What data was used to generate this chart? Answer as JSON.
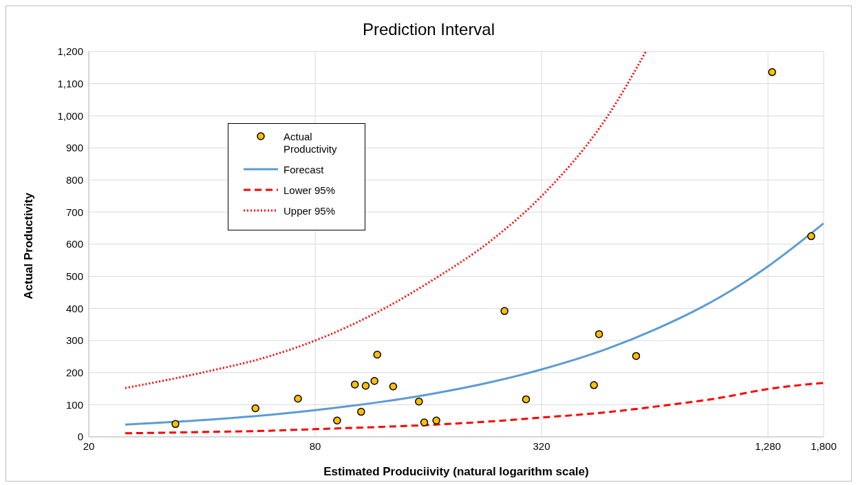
{
  "chart_data": {
    "type": "scatter",
    "title": "Prediction Interval",
    "xlabel": "Estimated Produciivity (natural logarithm scale)",
    "ylabel": "Actual Productivity",
    "log": "x",
    "xlim": [
      20,
      1800
    ],
    "xticks": [
      20,
      80,
      320,
      {
        "value": 1280,
        "label": "1,280"
      },
      {
        "value": 1800,
        "label": "1,800"
      }
    ],
    "ylim": [
      0,
      1200
    ],
    "yticks": [
      0,
      100,
      200,
      300,
      400,
      500,
      600,
      700,
      800,
      900,
      {
        "value": 1000,
        "label": "1,000"
      },
      {
        "value": 1100,
        "label": "1,100"
      },
      {
        "value": 1200,
        "label": "1,200"
      }
    ],
    "grid": true,
    "legend": "top left",
    "series": [
      {
        "name": "Actual Productivity",
        "marker": "circle",
        "color": "#ffc000",
        "x": [
          34,
          55.5,
          72,
          91.5,
          102,
          106,
          109,
          115,
          117,
          129,
          151,
          156,
          168,
          255,
          291,
          441,
          455,
          571,
          1313,
          1668
        ],
        "values": [
          40,
          89,
          119,
          51,
          163,
          78,
          159,
          174,
          256,
          157,
          110,
          45,
          51,
          392,
          117,
          161,
          320,
          252,
          1136,
          625
        ]
      },
      {
        "name": "Forecast",
        "type": "line",
        "marker": "none",
        "line_style": "solid",
        "color": "#5b9bd5",
        "x": [
          25,
          40,
          60,
          80,
          120,
          160,
          240,
          320,
          480,
          640,
          960,
          1280,
          1800
        ],
        "values": [
          38,
          52,
          68,
          83,
          109,
          132,
          173,
          210,
          275,
          334,
          437,
          531,
          665
        ]
      },
      {
        "name": "Lower 95%",
        "type": "line",
        "marker": "none",
        "line_style": "dashed",
        "color": "#ff0000",
        "x": [
          25,
          40,
          60,
          80,
          120,
          160,
          240,
          320,
          480,
          640,
          960,
          1280,
          1800
        ],
        "values": [
          11,
          15,
          19,
          24,
          31,
          37,
          49,
          60,
          77,
          94,
          122,
          149,
          168
        ]
      },
      {
        "name": "Upper 95%",
        "type": "line",
        "marker": "none",
        "line_style": "dotted",
        "color": "#ff0000",
        "x": [
          25,
          40,
          60,
          80,
          120,
          160,
          240,
          320,
          480,
          606
        ],
        "values": [
          152,
          200,
          250,
          300,
          395,
          480,
          620,
          750,
          1000,
          1200
        ]
      }
    ]
  }
}
